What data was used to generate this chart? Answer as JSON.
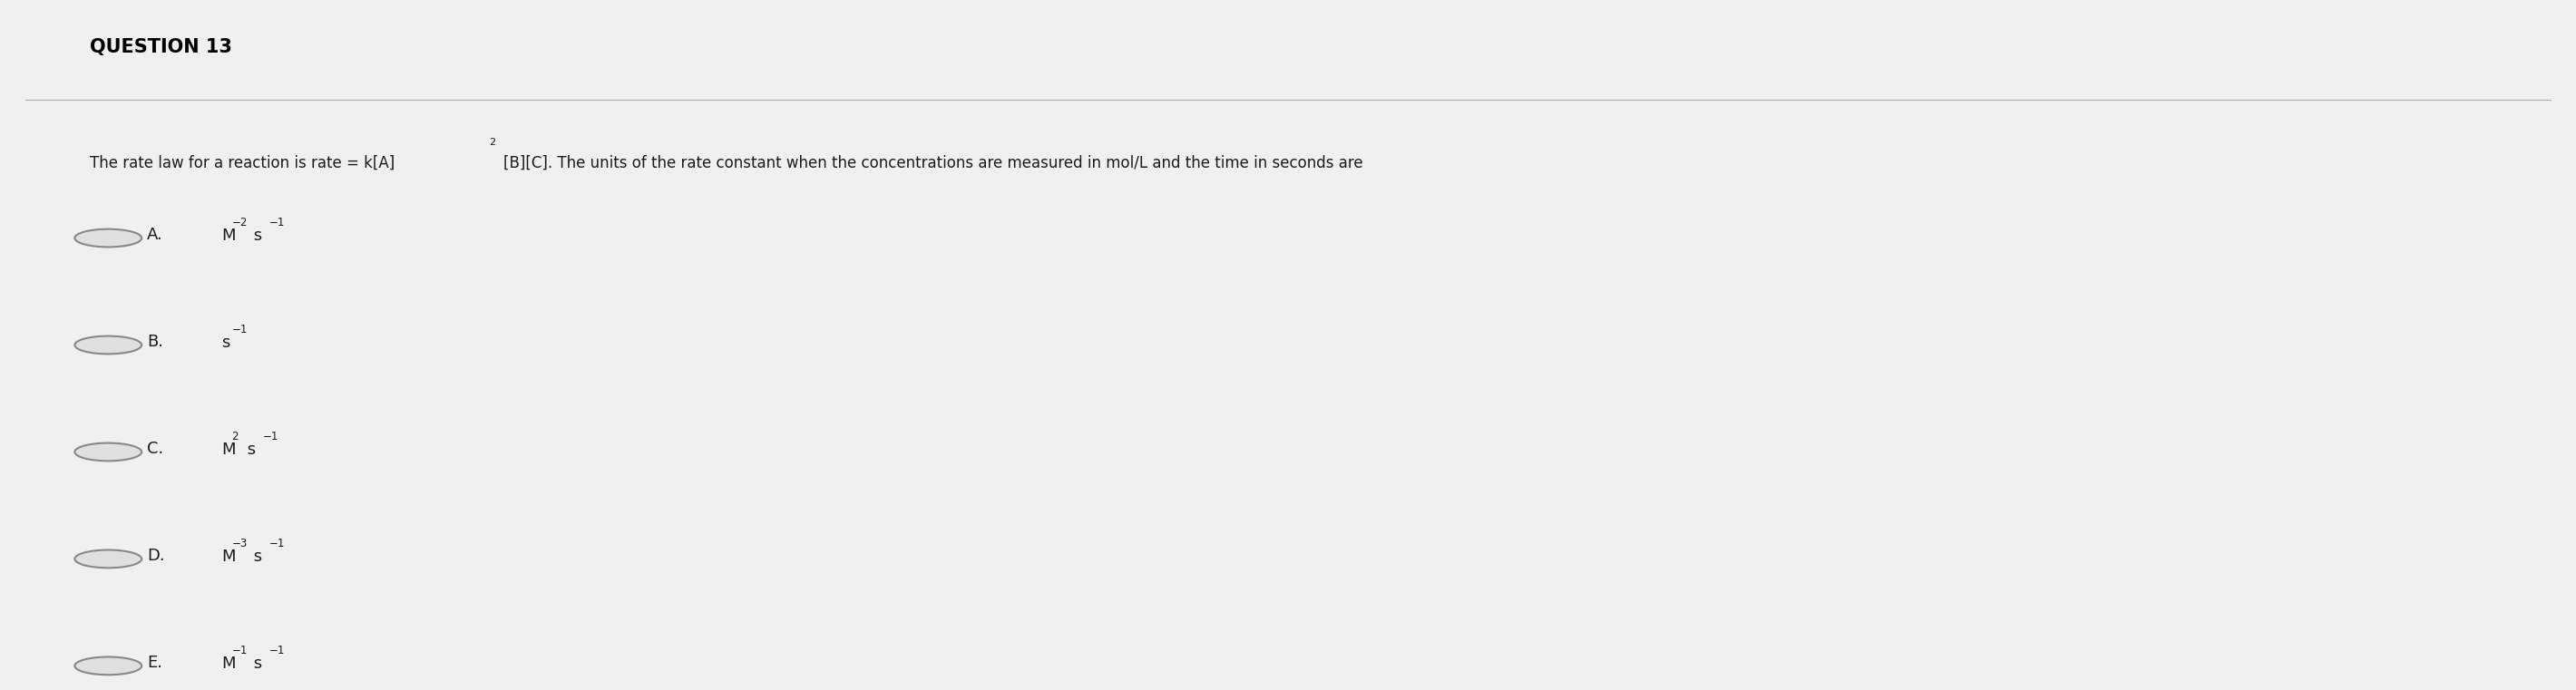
{
  "title": "QUESTION 13",
  "question_text": "The rate law for a reaction is rate = k[A]",
  "question_superscript": "2",
  "question_text2": "[B][C]. The units of the rate constant when the concentrations are measured in mol/L and the time in seconds are",
  "options": [
    {
      "label": "A.",
      "main": "M",
      "sup": "−2",
      "rest": " s",
      "sup2": "−1"
    },
    {
      "label": "B.",
      "main": "s",
      "sup": "−1",
      "rest": "",
      "sup2": ""
    },
    {
      "label": "C.",
      "main": "M",
      "sup": "2",
      "rest": " s",
      "sup2": "−1"
    },
    {
      "label": "D.",
      "main": "M",
      "sup": "−3",
      "rest": " s",
      "sup2": "−1"
    },
    {
      "label": "E.",
      "main": "M",
      "sup": "−1",
      "rest": " s",
      "sup2": "−1"
    }
  ],
  "bg_color": "#d9d9d9",
  "box_color": "#f0f0f0",
  "text_color": "#1a1a1a",
  "title_color": "#000000",
  "radio_color": "#888888",
  "radio_fill": "#e0e0e0"
}
